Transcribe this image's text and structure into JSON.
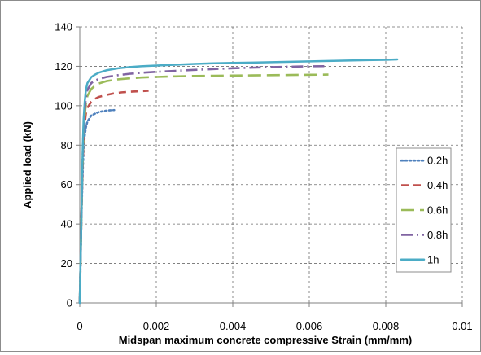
{
  "chart_data": {
    "type": "line",
    "xlabel": "Midspan maximum concrete compressive Strain (mm/mm)",
    "ylabel": "Applied load (kN)",
    "xlim": [
      0,
      0.01
    ],
    "ylim": [
      0,
      140
    ],
    "x_ticks": [
      0,
      0.002,
      0.004,
      0.006,
      0.008,
      0.01
    ],
    "x_tick_labels": [
      "0",
      "0.002",
      "0.004",
      "0.006",
      "0.008",
      "0.01"
    ],
    "y_ticks": [
      0,
      20,
      40,
      60,
      80,
      100,
      120,
      140
    ],
    "y_tick_labels": [
      "0",
      "20",
      "40",
      "60",
      "80",
      "100",
      "120",
      "140"
    ],
    "grid": "dashed",
    "legend_position": "right",
    "series": [
      {
        "name": "0.2h",
        "color": "#4f81bd",
        "dash": "dotted",
        "x": [
          0,
          2e-05,
          4e-05,
          6e-05,
          8e-05,
          0.0001,
          0.00013,
          0.00016,
          0.0002,
          0.0003,
          0.0004,
          0.0005,
          0.0006,
          0.0007,
          0.0008,
          0.0009
        ],
        "y": [
          0,
          20,
          40,
          55,
          68,
          78,
          85,
          89,
          92,
          95,
          96,
          96.8,
          97.2,
          97.5,
          97.7,
          97.8
        ]
      },
      {
        "name": "0.4h",
        "color": "#c0504d",
        "dash": "dashed",
        "x": [
          0,
          2e-05,
          4e-05,
          6e-05,
          8e-05,
          0.0001,
          0.00013,
          0.00016,
          0.0002,
          0.0003,
          0.0004,
          0.0005,
          0.0007,
          0.0009,
          0.0011,
          0.0013,
          0.0015,
          0.0017,
          0.0018
        ],
        "y": [
          0,
          20,
          40,
          58,
          72,
          83,
          91,
          96,
          99,
          102,
          103.5,
          104.5,
          105.5,
          106.3,
          106.8,
          107.1,
          107.3,
          107.5,
          107.6
        ]
      },
      {
        "name": "0.6h",
        "color": "#9bbb59",
        "dash": "longdash",
        "x": [
          0,
          2e-05,
          4e-05,
          6e-05,
          8e-05,
          0.0001,
          0.00013,
          0.00016,
          0.0002,
          0.0003,
          0.0004,
          0.0005,
          0.0007,
          0.001,
          0.0013,
          0.0016,
          0.002,
          0.0025,
          0.003,
          0.0035,
          0.004,
          0.0045,
          0.005,
          0.0055,
          0.006,
          0.0065
        ],
        "y": [
          0,
          20,
          40,
          60,
          75,
          86,
          95,
          101,
          105,
          108.5,
          110.2,
          111.3,
          112.5,
          113.4,
          113.9,
          114.3,
          114.6,
          114.9,
          115.1,
          115.2,
          115.3,
          115.4,
          115.5,
          115.6,
          115.7,
          115.8
        ]
      },
      {
        "name": "0.8h",
        "color": "#8064a2",
        "dash": "dashdot",
        "x": [
          0,
          2e-05,
          4e-05,
          6e-05,
          8e-05,
          0.0001,
          0.00013,
          0.00016,
          0.0002,
          0.0003,
          0.0004,
          0.0005,
          0.0007,
          0.001,
          0.0013,
          0.0016,
          0.002,
          0.0025,
          0.003,
          0.0035,
          0.004,
          0.0045,
          0.005,
          0.0055,
          0.006,
          0.0065
        ],
        "y": [
          0,
          20,
          40,
          60,
          77,
          89,
          98,
          104,
          108,
          111.5,
          112.8,
          113.6,
          114.6,
          115.5,
          116.2,
          116.7,
          117.2,
          117.7,
          118.2,
          118.6,
          119,
          119.3,
          119.6,
          119.8,
          120,
          120.1
        ]
      },
      {
        "name": "1h",
        "color": "#4bacc6",
        "dash": "solid",
        "x": [
          0,
          2e-05,
          4e-05,
          6e-05,
          8e-05,
          0.0001,
          0.00013,
          0.00016,
          0.0002,
          0.0003,
          0.0004,
          0.0005,
          0.0007,
          0.001,
          0.0013,
          0.0016,
          0.002,
          0.0025,
          0.003,
          0.0035,
          0.004,
          0.0045,
          0.005,
          0.0055,
          0.006,
          0.0065,
          0.007,
          0.0075,
          0.008,
          0.0083
        ],
        "y": [
          0,
          20,
          40,
          62,
          80,
          93,
          102,
          108,
          111.5,
          114.5,
          115.8,
          116.8,
          118,
          119,
          119.6,
          120,
          120.4,
          120.8,
          121.2,
          121.5,
          121.7,
          121.9,
          122.1,
          122.3,
          122.5,
          122.7,
          122.9,
          123.1,
          123.3,
          123.5
        ]
      }
    ]
  }
}
